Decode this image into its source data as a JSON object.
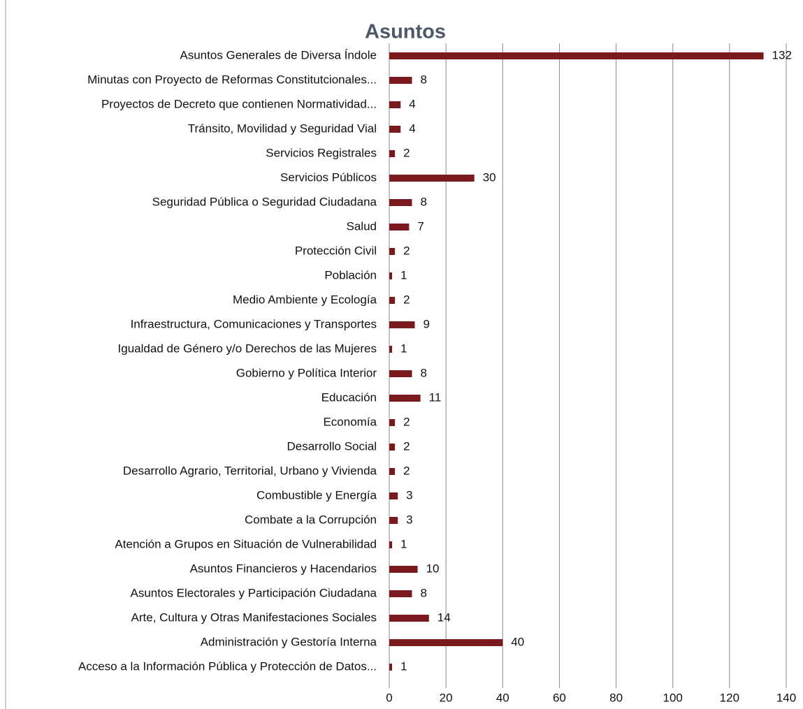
{
  "chart_data": {
    "type": "barh",
    "title": "Asuntos",
    "categories": [
      "Asuntos Generales de Diversa Índole",
      "Minutas con Proyecto de Reformas Constitutcionales...",
      "Proyectos de Decreto que contienen Normatividad...",
      "Tránsito, Movilidad y Seguridad Vial",
      "Servicios Registrales",
      "Servicios Públicos",
      "Seguridad Pública o Seguridad Ciudadana",
      "Salud",
      "Protección Civil",
      "Población",
      "Medio Ambiente y Ecología",
      "Infraestructura, Comunicaciones y Transportes",
      "Igualdad de Género y/o Derechos de las Mujeres",
      "Gobierno y Política Interior",
      "Educación",
      "Economía",
      "Desarrollo Social",
      "Desarrollo Agrario, Territorial, Urbano y Vivienda",
      "Combustible y Energía",
      "Combate a la Corrupción",
      "Atención a Grupos en Situación de Vulnerabilidad",
      "Asuntos Financieros y Hacendarios",
      "Asuntos Electorales y Participación Ciudadana",
      "Arte, Cultura y Otras Manifestaciones Sociales",
      "Administración y Gestoría Interna",
      "Acceso a la Información Pública y Protección de Datos..."
    ],
    "values": [
      132,
      8,
      4,
      4,
      2,
      30,
      8,
      7,
      2,
      1,
      2,
      9,
      1,
      8,
      11,
      2,
      2,
      2,
      3,
      3,
      1,
      10,
      8,
      14,
      40,
      1
    ],
    "color": "#7a1a1f",
    "xlim": [
      0,
      140
    ],
    "xticks": [
      0,
      20,
      40,
      60,
      80,
      100,
      120,
      140
    ],
    "grid": true
  }
}
